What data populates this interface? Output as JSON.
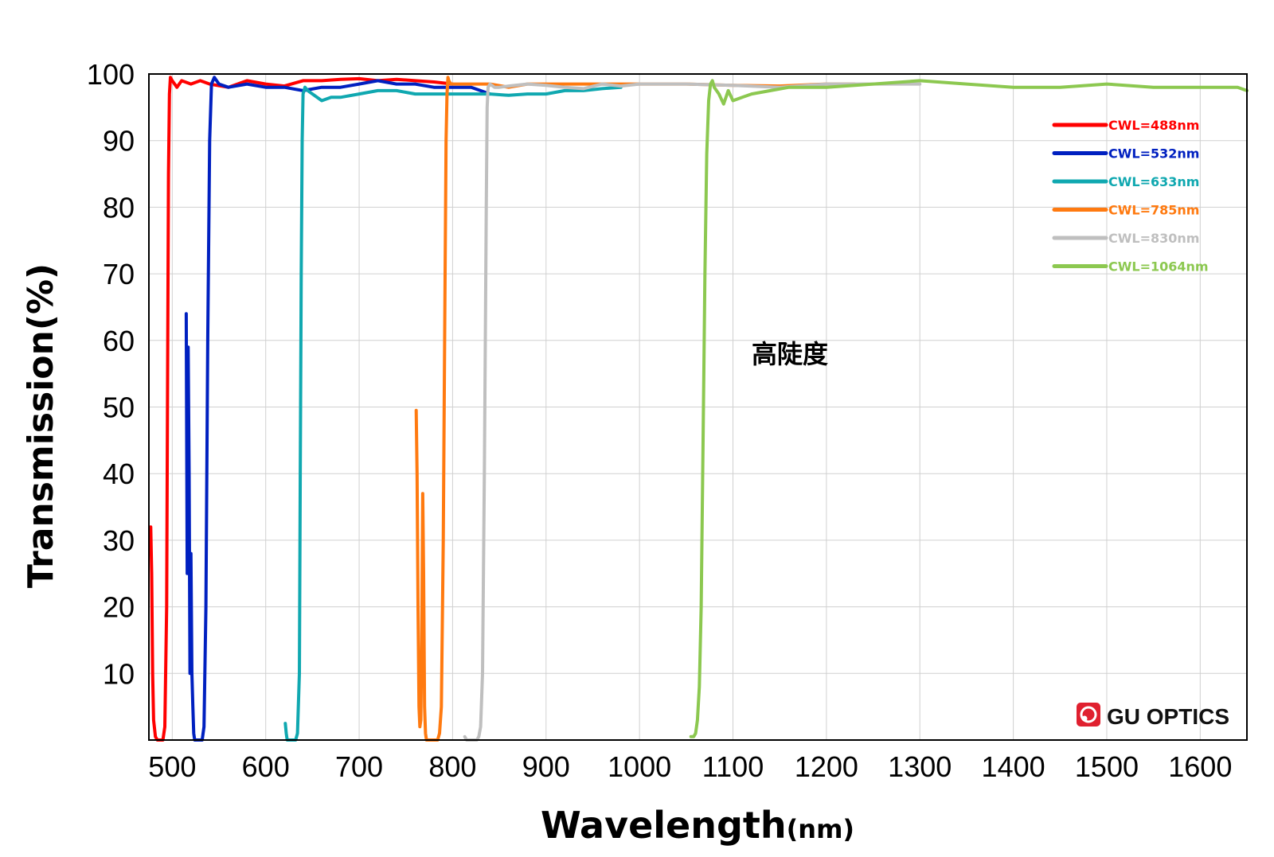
{
  "chart_data": {
    "type": "line",
    "title": "",
    "xlabel": "Wavelength",
    "xlabel_unit": "(nm)",
    "ylabel": "Transmission(%)",
    "xlim": [
      475,
      1650
    ],
    "ylim": [
      0,
      100
    ],
    "xticks": [
      500,
      600,
      700,
      800,
      900,
      1000,
      1100,
      1200,
      1300,
      1400,
      1500,
      1600
    ],
    "yticks": [
      10,
      20,
      30,
      40,
      50,
      60,
      70,
      80,
      90,
      100
    ],
    "grid": true,
    "legend_position": "top-right",
    "annotation": "高陡度",
    "series": [
      {
        "name": "CWL=488nm",
        "color": "#ff0000",
        "x": [
          477,
          478,
          479,
          480,
          482,
          484,
          486,
          488,
          490,
          492,
          494,
          495,
          496,
          497,
          498,
          500,
          505,
          510,
          520,
          530,
          540,
          560,
          580,
          600,
          620,
          640,
          660,
          680,
          700,
          720,
          740,
          760,
          780,
          800
        ],
        "y": [
          32,
          25,
          10,
          3,
          0.5,
          0,
          0,
          0,
          0,
          2,
          20,
          55,
          85,
          97,
          99.5,
          99,
          98,
          99,
          98.5,
          99,
          98.5,
          98,
          99,
          98.5,
          98.2,
          99,
          99,
          99.2,
          99.3,
          99,
          99.2,
          99,
          98.8,
          98.5
        ]
      },
      {
        "name": "CWL=532nm",
        "color": "#0020c0",
        "x": [
          515,
          516,
          517,
          518,
          519,
          520,
          521,
          522,
          523,
          524,
          525,
          526,
          528,
          530,
          532,
          534,
          536,
          538,
          540,
          542,
          545,
          550,
          560,
          580,
          600,
          620,
          640,
          660,
          680,
          700,
          720,
          740,
          760,
          780,
          800,
          820,
          840
        ],
        "y": [
          64,
          25,
          59,
          40,
          10,
          28,
          10,
          5,
          1,
          0,
          0,
          0,
          0,
          0,
          0,
          2,
          20,
          60,
          90,
          98.5,
          99.5,
          98.5,
          98,
          98.5,
          98,
          98,
          97.5,
          98,
          98,
          98.5,
          99,
          98.5,
          98.5,
          98,
          98,
          98,
          97
        ]
      },
      {
        "name": "CWL=633nm",
        "color": "#10a8b0",
        "x": [
          621,
          622,
          623,
          624,
          626,
          628,
          630,
          632,
          634,
          636,
          637,
          638,
          639,
          640,
          642,
          645,
          650,
          660,
          670,
          680,
          700,
          720,
          740,
          760,
          780,
          800,
          820,
          840,
          860,
          880,
          900,
          920,
          940,
          960,
          980
        ],
        "y": [
          2.5,
          1,
          0,
          0,
          0,
          0,
          0,
          0,
          1,
          10,
          40,
          70,
          90,
          97,
          98,
          97.5,
          97,
          96,
          96.5,
          96.5,
          97,
          97.5,
          97.5,
          97,
          97,
          97,
          97,
          97,
          96.8,
          97,
          97,
          97.5,
          97.5,
          97.8,
          98
        ]
      },
      {
        "name": "CWL=785nm",
        "color": "#ff7a10",
        "x": [
          761,
          762,
          763,
          764,
          765,
          766,
          767,
          768,
          769,
          770,
          771,
          772,
          774,
          776,
          778,
          780,
          782,
          784,
          786,
          788,
          790,
          792,
          793,
          794,
          795,
          796,
          798,
          800,
          820,
          840,
          860,
          880,
          900,
          950,
          1000,
          1050,
          1100,
          1150,
          1200,
          1230
        ],
        "y": [
          49.5,
          40,
          20,
          5,
          2,
          3,
          15,
          37,
          25,
          5,
          1,
          0,
          0,
          0,
          0,
          0,
          0,
          0,
          1,
          5,
          30,
          70,
          90,
          97,
          99.5,
          99,
          98.5,
          98.5,
          98.5,
          98.5,
          98,
          98.5,
          98.5,
          98.5,
          98.5,
          98.5,
          98.3,
          98.2,
          98.5,
          98.5
        ]
      },
      {
        "name": "CWL=830nm",
        "color": "#bfbfbf",
        "x": [
          813,
          815,
          818,
          820,
          822,
          824,
          826,
          828,
          830,
          832,
          834,
          836,
          837,
          838,
          840,
          845,
          850,
          860,
          880,
          900,
          920,
          940,
          960,
          980,
          1000,
          1050,
          1100,
          1150,
          1200,
          1250,
          1300
        ],
        "y": [
          0.5,
          0,
          0,
          0,
          0,
          0,
          0,
          0.5,
          2,
          10,
          40,
          80,
          95,
          98,
          98.5,
          98,
          98,
          98.2,
          98.5,
          98.3,
          98,
          97.8,
          98.5,
          98.2,
          98.5,
          98.5,
          98.3,
          98,
          98.5,
          98.5,
          98.5
        ]
      },
      {
        "name": "CWL=1064nm",
        "color": "#8cc850",
        "x": [
          1055,
          1058,
          1060,
          1062,
          1064,
          1066,
          1068,
          1070,
          1072,
          1074,
          1076,
          1078,
          1080,
          1085,
          1090,
          1095,
          1100,
          1110,
          1120,
          1140,
          1160,
          1180,
          1200,
          1250,
          1300,
          1350,
          1400,
          1450,
          1500,
          1550,
          1600,
          1640,
          1650
        ],
        "y": [
          0.5,
          0.5,
          1,
          3,
          8,
          20,
          45,
          70,
          88,
          96,
          98.5,
          99,
          98,
          97,
          95.5,
          97.5,
          96,
          96.5,
          97,
          97.5,
          98,
          98,
          98,
          98.5,
          99,
          98.5,
          98,
          98,
          98.5,
          98,
          98,
          98,
          97.5
        ]
      }
    ]
  },
  "brand": {
    "name": "GU OPTICS",
    "logo_color": "#e0202f"
  }
}
